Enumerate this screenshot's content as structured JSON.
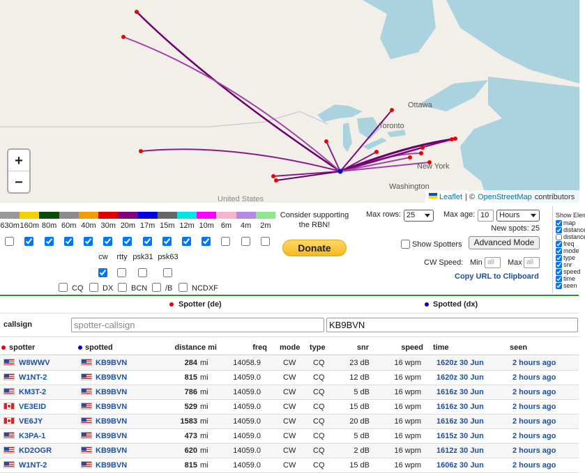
{
  "map": {
    "labels": [
      "Ottawa",
      "Toronto",
      "New York",
      "Washington",
      "United States"
    ],
    "zoom_in": "+",
    "zoom_out": "−",
    "attribution": {
      "leaflet": "Leaflet",
      "separator": "| ©",
      "osm": "OpenStreetMap",
      "suffix": "contributors"
    }
  },
  "bands": [
    {
      "name": "630m",
      "color": "#999999",
      "checked": false
    },
    {
      "name": "160m",
      "color": "#f5d000",
      "checked": true
    },
    {
      "name": "80m",
      "color": "#0b4a0b",
      "checked": true
    },
    {
      "name": "60m",
      "color": "#8c8c8c",
      "checked": true
    },
    {
      "name": "40m",
      "color": "#f39c00",
      "checked": true
    },
    {
      "name": "30m",
      "color": "#e00000",
      "checked": true
    },
    {
      "name": "20m",
      "color": "#800080",
      "checked": true
    },
    {
      "name": "17m",
      "color": "#0000e0",
      "checked": true
    },
    {
      "name": "15m",
      "color": "#666666",
      "checked": true
    },
    {
      "name": "12m",
      "color": "#00e5e5",
      "checked": true
    },
    {
      "name": "10m",
      "color": "#ff00ff",
      "checked": true
    },
    {
      "name": "6m",
      "color": "#f7b6cc",
      "checked": false
    },
    {
      "name": "4m",
      "color": "#b58ae6",
      "checked": false
    },
    {
      "name": "2m",
      "color": "#8ee68e",
      "checked": false
    }
  ],
  "modes": [
    {
      "name": "cw",
      "checked": true
    },
    {
      "name": "rtty",
      "checked": false
    },
    {
      "name": "psk31",
      "checked": false
    },
    {
      "name": "psk63",
      "checked": false
    }
  ],
  "filters": [
    {
      "name": "CQ",
      "checked": false
    },
    {
      "name": "DX",
      "checked": false
    },
    {
      "name": "BCN",
      "checked": false
    },
    {
      "name": "/B",
      "checked": false
    },
    {
      "name": "NCDXF",
      "checked": false
    }
  ],
  "donate": {
    "text": "Consider supporting the RBN!",
    "button": "Donate"
  },
  "controls": {
    "max_rows_label": "Max rows:",
    "max_rows": "25",
    "max_age_label": "Max age:",
    "max_age": "10",
    "max_age_unit": "Hours",
    "new_spots_label": "New spots:",
    "new_spots": 25,
    "show_spotters": "Show Spotters",
    "show_spotters_checked": false,
    "advanced_mode": "Advanced Mode",
    "cw_speed_label": "CW Speed:",
    "min_label": "Min",
    "min_placeholder": "all",
    "max_label": "Max",
    "max_placeholder": "all",
    "copy_url": "Copy URL to Clipboard"
  },
  "show_elements": {
    "title": "Show Elements",
    "items": [
      {
        "name": "map",
        "checked": true
      },
      {
        "name": "distance",
        "checked": true
      },
      {
        "name": "distance",
        "checked": false
      },
      {
        "name": "freq",
        "checked": true
      },
      {
        "name": "mode",
        "checked": true
      },
      {
        "name": "type",
        "checked": true
      },
      {
        "name": "snr",
        "checked": true
      },
      {
        "name": "speed",
        "checked": true
      },
      {
        "name": "time",
        "checked": true
      },
      {
        "name": "seen",
        "checked": true
      }
    ]
  },
  "table": {
    "spotter_header": "Spotter (de)",
    "spotted_header": "Spotted (dx)",
    "callsign_label": "callsign",
    "spotter_placeholder": "spotter-callsign",
    "spotted_value": "KB9BVN",
    "columns": [
      "spotter",
      "spotted",
      "distance mi",
      "freq",
      "mode",
      "type",
      "snr",
      "speed",
      "time",
      "seen"
    ],
    "rows": [
      {
        "spotter": "W8WWV",
        "spotter_flag": "us",
        "spotted": "KB9BVN",
        "spotted_flag": "us",
        "distance": 284,
        "distance_unit": "mi",
        "freq": "14058.9",
        "mode": "CW",
        "type": "CQ",
        "snr": "23 dB",
        "speed": "16 wpm",
        "time": "1620z 30 Jun",
        "seen": "2 hours ago"
      },
      {
        "spotter": "W1NT-2",
        "spotter_flag": "us",
        "spotted": "KB9BVN",
        "spotted_flag": "us",
        "distance": 815,
        "distance_unit": "mi",
        "freq": "14059.0",
        "mode": "CW",
        "type": "CQ",
        "snr": "12 dB",
        "speed": "16 wpm",
        "time": "1620z 30 Jun",
        "seen": "2 hours ago"
      },
      {
        "spotter": "KM3T-2",
        "spotter_flag": "us",
        "spotted": "KB9BVN",
        "spotted_flag": "us",
        "distance": 786,
        "distance_unit": "mi",
        "freq": "14059.0",
        "mode": "CW",
        "type": "CQ",
        "snr": "5 dB",
        "speed": "16 wpm",
        "time": "1616z 30 Jun",
        "seen": "2 hours ago"
      },
      {
        "spotter": "VE3EID",
        "spotter_flag": "ca",
        "spotted": "KB9BVN",
        "spotted_flag": "us",
        "distance": 529,
        "distance_unit": "mi",
        "freq": "14059.0",
        "mode": "CW",
        "type": "CQ",
        "snr": "15 dB",
        "speed": "16 wpm",
        "time": "1616z 30 Jun",
        "seen": "2 hours ago"
      },
      {
        "spotter": "VE6JY",
        "spotter_flag": "ca",
        "spotted": "KB9BVN",
        "spotted_flag": "us",
        "distance": 1583,
        "distance_unit": "mi",
        "freq": "14059.0",
        "mode": "CW",
        "type": "CQ",
        "snr": "20 dB",
        "speed": "16 wpm",
        "time": "1616z 30 Jun",
        "seen": "2 hours ago"
      },
      {
        "spotter": "K3PA-1",
        "spotter_flag": "us",
        "spotted": "KB9BVN",
        "spotted_flag": "us",
        "distance": 473,
        "distance_unit": "mi",
        "freq": "14059.0",
        "mode": "CW",
        "type": "CQ",
        "snr": "5 dB",
        "speed": "16 wpm",
        "time": "1615z 30 Jun",
        "seen": "2 hours ago"
      },
      {
        "spotter": "KD2OGR",
        "spotter_flag": "us",
        "spotted": "KB9BVN",
        "spotted_flag": "us",
        "distance": 620,
        "distance_unit": "mi",
        "freq": "14059.0",
        "mode": "CW",
        "type": "CQ",
        "snr": "2 dB",
        "speed": "16 wpm",
        "time": "1612z 30 Jun",
        "seen": "2 hours ago"
      },
      {
        "spotter": "W1NT-2",
        "spotter_flag": "us",
        "spotted": "KB9BVN",
        "spotted_flag": "us",
        "distance": 815,
        "distance_unit": "mi",
        "freq": "14059.0",
        "mode": "CW",
        "type": "CQ",
        "snr": "15 dB",
        "speed": "16 wpm",
        "time": "1606z 30 Jun",
        "seen": "2 hours ago"
      }
    ]
  }
}
